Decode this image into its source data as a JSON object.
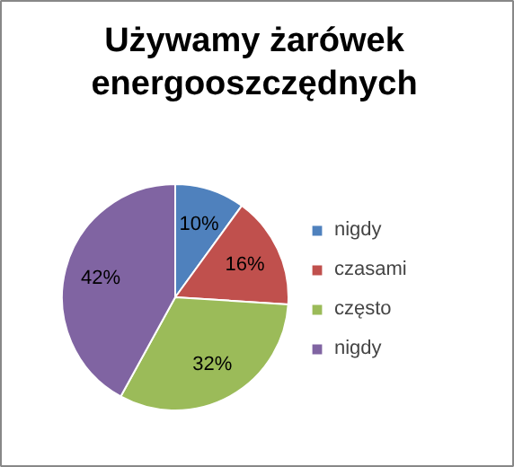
{
  "chart_data": {
    "type": "pie",
    "title": "Używamy żarówek\nenergooszczędnych",
    "categories": [
      "nigdy",
      "czasami",
      "często",
      "nigdy"
    ],
    "values": [
      10,
      16,
      32,
      42
    ],
    "colors": [
      "#4f81bd",
      "#c0504d",
      "#9bbb59",
      "#8064a2"
    ],
    "value_labels": [
      "10%",
      "16%",
      "32%",
      "42%"
    ],
    "legend": "right"
  }
}
